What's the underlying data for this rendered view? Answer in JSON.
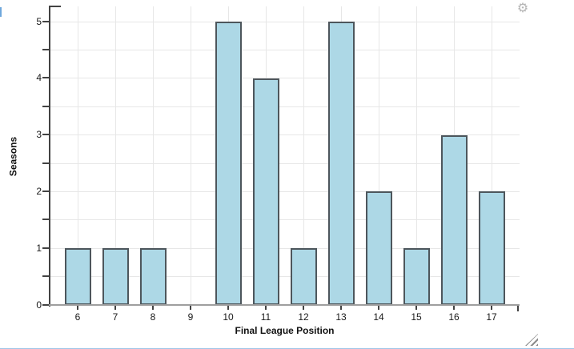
{
  "chart_data": {
    "type": "bar",
    "title": "",
    "xlabel": "Final League Position",
    "ylabel": "Seasons",
    "categories": [
      "6",
      "7",
      "8",
      "9",
      "10",
      "11",
      "12",
      "13",
      "14",
      "15",
      "16",
      "17"
    ],
    "values": [
      1,
      1,
      1,
      0,
      5,
      4,
      1,
      5,
      2,
      1,
      3,
      2
    ],
    "ylim": [
      0,
      5
    ],
    "ytick_labels": [
      "0",
      "1",
      "2",
      "3",
      "4",
      "5"
    ],
    "minor_tick_step": 0.5,
    "grid": true,
    "legend_position": "none",
    "bar_fill": "#ADD8E6",
    "bar_border": "#4D565C",
    "yaxis_color": "#424242",
    "xaxis_color": "#9E9E9E",
    "grid_color": "#E7E7E7",
    "label_color": "#1A1A1A"
  },
  "icons": {
    "settings_gear": "⚙"
  }
}
